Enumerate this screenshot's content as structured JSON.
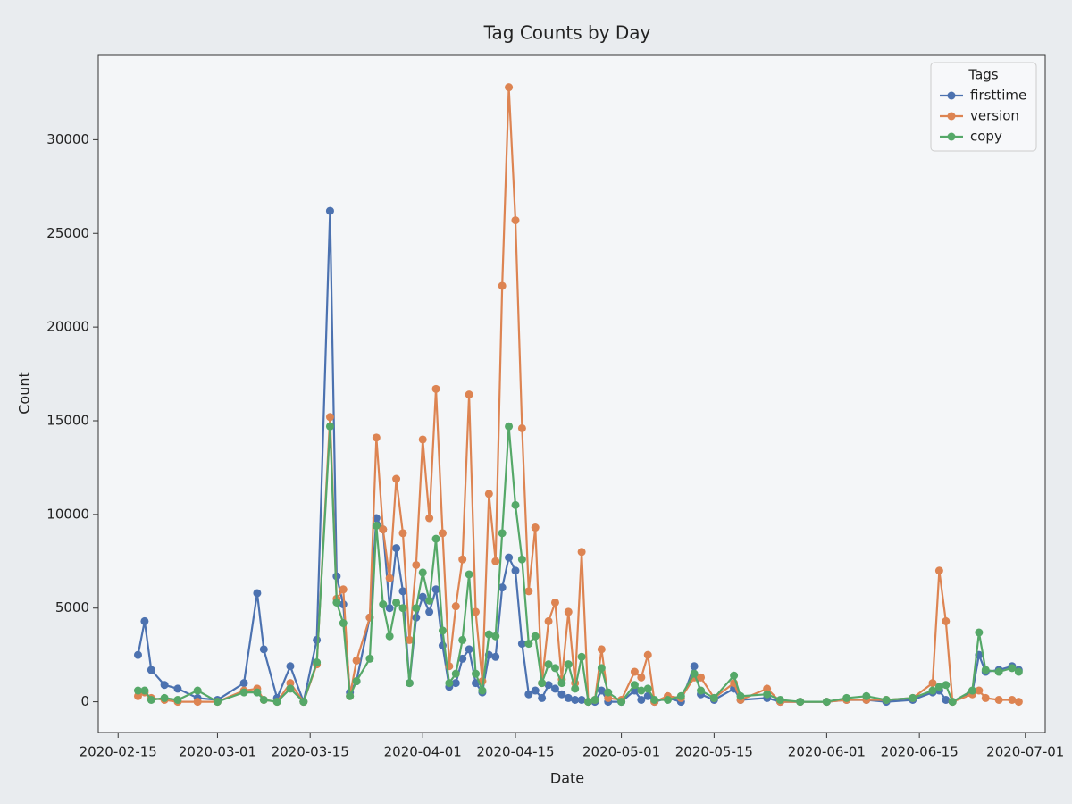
{
  "chart_data": {
    "type": "line",
    "title": "Tag Counts by Day",
    "x_label": "Date",
    "y_label": "Count",
    "legend_title": "Tags",
    "legend_position": "upper right",
    "grid": false,
    "xlim": [
      "2020-02-12",
      "2020-07-04"
    ],
    "ylim": [
      -1640,
      34500
    ],
    "xticks": [
      "2020-02-15",
      "2020-03-01",
      "2020-03-15",
      "2020-04-01",
      "2020-04-15",
      "2020-05-01",
      "2020-05-15",
      "2020-06-01",
      "2020-06-15",
      "2020-07-01"
    ],
    "yticks": [
      0,
      5000,
      10000,
      15000,
      20000,
      25000,
      30000
    ],
    "x": [
      "2020-02-18",
      "2020-02-19",
      "2020-02-20",
      "2020-02-22",
      "2020-02-24",
      "2020-02-27",
      "2020-03-01",
      "2020-03-05",
      "2020-03-07",
      "2020-03-08",
      "2020-03-10",
      "2020-03-12",
      "2020-03-14",
      "2020-03-16",
      "2020-03-18",
      "2020-03-19",
      "2020-03-20",
      "2020-03-21",
      "2020-03-22",
      "2020-03-24",
      "2020-03-25",
      "2020-03-26",
      "2020-03-27",
      "2020-03-28",
      "2020-03-29",
      "2020-03-30",
      "2020-03-31",
      "2020-04-01",
      "2020-04-02",
      "2020-04-03",
      "2020-04-04",
      "2020-04-05",
      "2020-04-06",
      "2020-04-07",
      "2020-04-08",
      "2020-04-09",
      "2020-04-10",
      "2020-04-11",
      "2020-04-12",
      "2020-04-13",
      "2020-04-14",
      "2020-04-15",
      "2020-04-16",
      "2020-04-17",
      "2020-04-18",
      "2020-04-19",
      "2020-04-20",
      "2020-04-21",
      "2020-04-22",
      "2020-04-23",
      "2020-04-24",
      "2020-04-25",
      "2020-04-26",
      "2020-04-27",
      "2020-04-28",
      "2020-04-29",
      "2020-05-01",
      "2020-05-03",
      "2020-05-04",
      "2020-05-05",
      "2020-05-06",
      "2020-05-08",
      "2020-05-10",
      "2020-05-12",
      "2020-05-13",
      "2020-05-15",
      "2020-05-18",
      "2020-05-19",
      "2020-05-23",
      "2020-05-25",
      "2020-05-28",
      "2020-06-01",
      "2020-06-04",
      "2020-06-07",
      "2020-06-10",
      "2020-06-14",
      "2020-06-17",
      "2020-06-18",
      "2020-06-19",
      "2020-06-20",
      "2020-06-23",
      "2020-06-24",
      "2020-06-25",
      "2020-06-27",
      "2020-06-29",
      "2020-06-30"
    ],
    "series": [
      {
        "name": "firsttime",
        "color": "#4c72b0",
        "values": [
          2500,
          4300,
          1700,
          900,
          700,
          200,
          100,
          1000,
          5800,
          2800,
          200,
          1900,
          0,
          3300,
          26200,
          6700,
          5200,
          500,
          1100,
          4500,
          9800,
          9200,
          5000,
          8200,
          5900,
          1000,
          4500,
          5600,
          4800,
          6000,
          3000,
          800,
          1000,
          2300,
          2800,
          1000,
          500,
          2500,
          2400,
          6100,
          7700,
          7000,
          3100,
          400,
          600,
          200,
          900,
          700,
          400,
          200,
          100,
          100,
          0,
          0,
          600,
          0,
          0,
          600,
          100,
          300,
          0,
          200,
          0,
          1900,
          400,
          100,
          700,
          100,
          200,
          0,
          0,
          0,
          100,
          100,
          0,
          100,
          500,
          600,
          100,
          0,
          500,
          2500,
          1600,
          1700,
          1900,
          1700
        ]
      },
      {
        "name": "version",
        "color": "#dd8452",
        "values": [
          300,
          500,
          200,
          100,
          0,
          0,
          0,
          600,
          700,
          100,
          0,
          1000,
          0,
          2000,
          15200,
          5500,
          6000,
          300,
          2200,
          4500,
          14100,
          9200,
          6600,
          11900,
          9000,
          3300,
          7300,
          14000,
          9800,
          16700,
          9000,
          1900,
          5100,
          7600,
          16400,
          4800,
          1100,
          11100,
          7500,
          22200,
          32800,
          25700,
          14600,
          5900,
          9300,
          1000,
          4300,
          5300,
          1200,
          4800,
          1000,
          8000,
          0,
          100,
          2800,
          200,
          100,
          1600,
          1300,
          2500,
          0,
          300,
          200,
          1300,
          1300,
          200,
          1000,
          100,
          700,
          0,
          0,
          0,
          100,
          100,
          100,
          200,
          1000,
          7000,
          4300,
          0,
          400,
          600,
          200,
          100,
          100,
          0
        ]
      },
      {
        "name": "copy",
        "color": "#55a868",
        "values": [
          600,
          600,
          100,
          200,
          100,
          600,
          0,
          500,
          500,
          100,
          0,
          700,
          0,
          2100,
          14700,
          5300,
          4200,
          300,
          1100,
          2300,
          9400,
          5200,
          3500,
          5300,
          5000,
          1000,
          5000,
          6900,
          5400,
          8700,
          3800,
          1000,
          1500,
          3300,
          6800,
          1500,
          600,
          3600,
          3500,
          9000,
          14700,
          10500,
          7600,
          3100,
          3500,
          1000,
          2000,
          1800,
          1000,
          2000,
          700,
          2400,
          0,
          100,
          1800,
          500,
          0,
          900,
          600,
          700,
          100,
          100,
          300,
          1500,
          600,
          200,
          1400,
          300,
          400,
          100,
          0,
          0,
          200,
          300,
          100,
          200,
          600,
          800,
          900,
          0,
          600,
          3700,
          1700,
          1600,
          1800,
          1600
        ]
      }
    ]
  }
}
